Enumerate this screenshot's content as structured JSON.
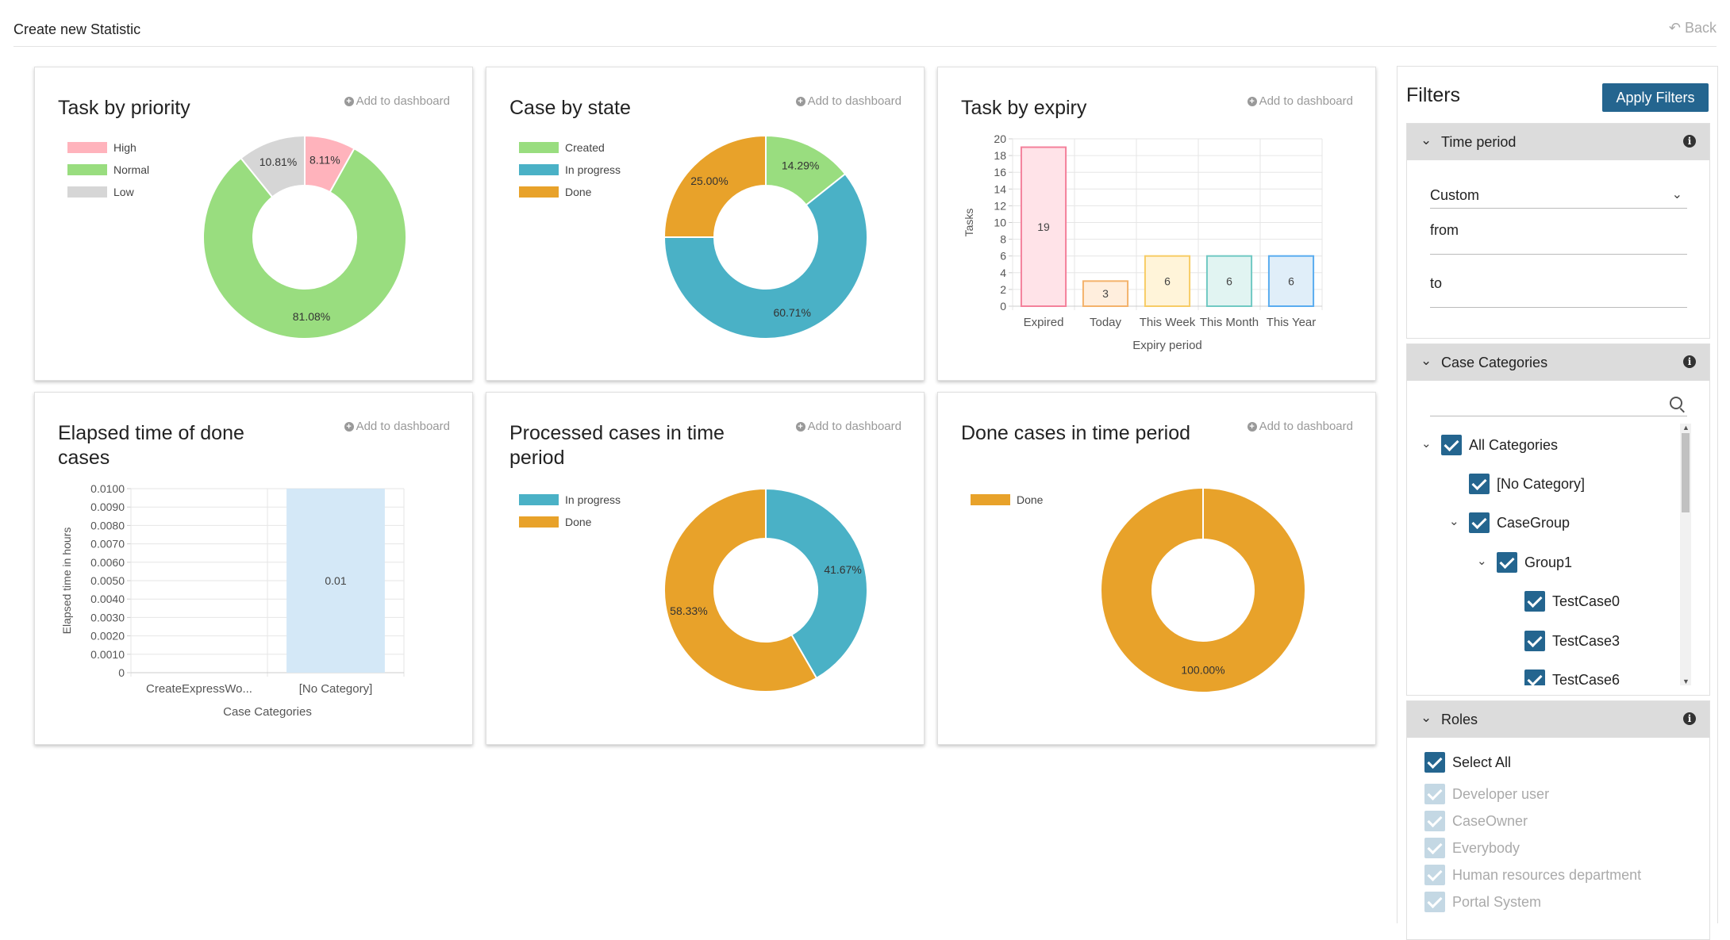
{
  "page": {
    "title": "Create new Statistic",
    "back_label": "Back"
  },
  "add_dashboard_label": "Add to dashboard",
  "charts": {
    "priority": {
      "title": "Task by priority",
      "chart_data": {
        "type": "pie",
        "variant": "donut",
        "labels": [
          "High",
          "Normal",
          "Low"
        ],
        "values": [
          8.11,
          81.08,
          10.81
        ],
        "value_labels": [
          "8.11%",
          "81.08%",
          "10.81%"
        ],
        "colors": [
          "#ffb3bc",
          "#99dd7f",
          "#d6d6d6"
        ],
        "legend": "top-left"
      }
    },
    "state": {
      "title": "Case by state",
      "chart_data": {
        "type": "pie",
        "variant": "donut",
        "labels": [
          "Created",
          "In progress",
          "Done"
        ],
        "values": [
          14.29,
          60.71,
          25.0
        ],
        "value_labels": [
          "14.29%",
          "60.71%",
          "25.00%"
        ],
        "colors": [
          "#99dd7f",
          "#4ab1c6",
          "#e8a22a"
        ],
        "legend": "top-left"
      }
    },
    "expiry": {
      "title": "Task by expiry",
      "chart_data": {
        "type": "bar",
        "categories": [
          "Expired",
          "Today",
          "This Week",
          "This Month",
          "This Year"
        ],
        "values": [
          19,
          3,
          6,
          6,
          6
        ],
        "value_labels": [
          "19",
          "3",
          "6",
          "6",
          "6"
        ],
        "fills": [
          "#ffe3e8",
          "#ffeedd",
          "#fff4d9",
          "#e1f4f2",
          "#e0eef9"
        ],
        "strokes": [
          "#f4819b",
          "#f4b26b",
          "#f7cc66",
          "#70c9c3",
          "#5aacf0"
        ],
        "xlabel": "Expiry period",
        "ylabel": "Tasks",
        "ylim": [
          0,
          20
        ],
        "yticks": [
          "0",
          "2",
          "4",
          "6",
          "8",
          "10",
          "12",
          "14",
          "16",
          "18",
          "20"
        ],
        "grid": true
      }
    },
    "elapsed": {
      "title": "Elapsed time of done cases",
      "chart_data": {
        "type": "bar",
        "categories": [
          "CreateExpressWo...",
          "[No Category]"
        ],
        "values": [
          0,
          0.01
        ],
        "value_labels": [
          "",
          "0.01"
        ],
        "fill": "#d4e8f7",
        "xlabel": "Case Categories",
        "ylabel": "Elapsed time in hours",
        "ylim": [
          0,
          0.01
        ],
        "yticks": [
          "0",
          "0.0010",
          "0.0020",
          "0.0030",
          "0.0040",
          "0.0050",
          "0.0060",
          "0.0070",
          "0.0080",
          "0.0090",
          "0.0100"
        ],
        "grid": true
      }
    },
    "processed": {
      "title": "Processed cases in time period",
      "chart_data": {
        "type": "pie",
        "variant": "donut",
        "labels": [
          "In progress",
          "Done"
        ],
        "values": [
          41.67,
          58.33
        ],
        "value_labels": [
          "41.67%",
          "58.33%"
        ],
        "colors": [
          "#4ab1c6",
          "#e8a22a"
        ],
        "legend": "top-left"
      }
    },
    "done": {
      "title": "Done cases in time period",
      "chart_data": {
        "type": "pie",
        "variant": "donut",
        "labels": [
          "Done"
        ],
        "values": [
          100.0
        ],
        "value_labels": [
          "100.00%"
        ],
        "colors": [
          "#e8a22a"
        ],
        "legend": "top-left"
      }
    }
  },
  "filters": {
    "title": "Filters",
    "apply_label": "Apply Filters",
    "time_period": {
      "title": "Time period",
      "selected": "Custom",
      "from_label": "from",
      "to_label": "to"
    },
    "case_categories": {
      "title": "Case Categories",
      "search_placeholder": "",
      "tree": [
        {
          "label": "All Categories",
          "toggle": "⌄"
        },
        {
          "label": "[No Category]",
          "toggle": ""
        },
        {
          "label": "CaseGroup",
          "toggle": "⌄"
        },
        {
          "label": "Group1",
          "toggle": "⌄"
        },
        {
          "label": "TestCase0",
          "toggle": ""
        },
        {
          "label": "TestCase3",
          "toggle": ""
        },
        {
          "label": "TestCase6",
          "toggle": ""
        }
      ]
    },
    "roles": {
      "title": "Roles",
      "items": [
        {
          "label": "Select All"
        },
        {
          "label": "Developer user"
        },
        {
          "label": "CaseOwner"
        },
        {
          "label": "Everybody"
        },
        {
          "label": "Human resources department"
        },
        {
          "label": "Portal System"
        }
      ]
    }
  }
}
